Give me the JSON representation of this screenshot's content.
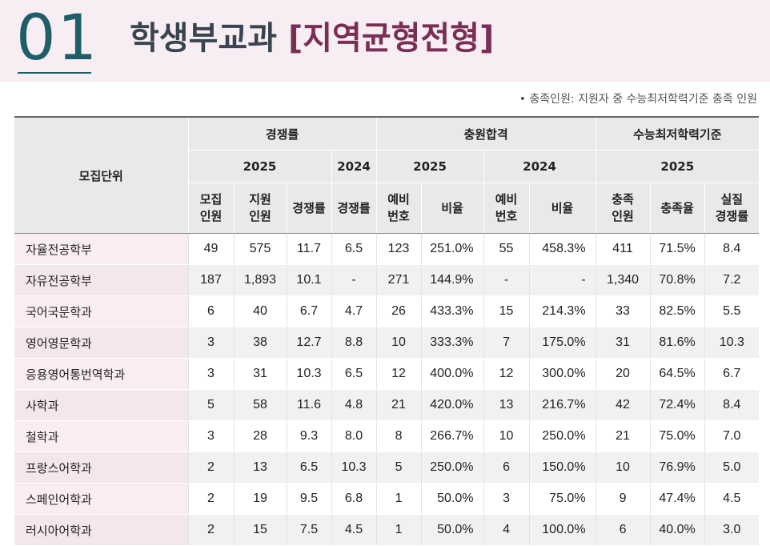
{
  "header": {
    "section_number": "01",
    "title_main": "학생부교과",
    "title_sub": "[지역균형전형]"
  },
  "note": "• 충족인원: 지원자 중 수능최저학력기준 충족 인원",
  "table": {
    "unit_header": "모집단위",
    "group_competition": "경쟁률",
    "group_additional": "충원합격",
    "group_csat": "수능최저학력기준",
    "years": {
      "y2025": "2025",
      "y2024": "2024"
    },
    "cols": {
      "recruit": "모집\n인원",
      "applicants": "지원\n인원",
      "rate": "경쟁률",
      "rate_2024": "경쟁률",
      "waitlist": "예비\n번호",
      "ratio": "비율",
      "waitlist_2024": "예비\n번호",
      "ratio_2024": "비율",
      "met": "충족\n인원",
      "met_rate": "충족율",
      "actual_rate": "실질\n경쟁률"
    },
    "rows": [
      [
        "자율전공학부",
        "49",
        "575",
        "11.7",
        "6.5",
        "123",
        "251.0%",
        "55",
        "458.3%",
        "411",
        "71.5%",
        "8.4"
      ],
      [
        "자유전공학부",
        "187",
        "1,893",
        "10.1",
        "-",
        "271",
        "144.9%",
        "-",
        "-",
        "1,340",
        "70.8%",
        "7.2"
      ],
      [
        "국어국문학과",
        "6",
        "40",
        "6.7",
        "4.7",
        "26",
        "433.3%",
        "15",
        "214.3%",
        "33",
        "82.5%",
        "5.5"
      ],
      [
        "영어영문학과",
        "3",
        "38",
        "12.7",
        "8.8",
        "10",
        "333.3%",
        "7",
        "175.0%",
        "31",
        "81.6%",
        "10.3"
      ],
      [
        "응용영어통번역학과",
        "3",
        "31",
        "10.3",
        "6.5",
        "12",
        "400.0%",
        "12",
        "300.0%",
        "20",
        "64.5%",
        "6.7"
      ],
      [
        "사학과",
        "5",
        "58",
        "11.6",
        "4.8",
        "21",
        "420.0%",
        "13",
        "216.7%",
        "42",
        "72.4%",
        "8.4"
      ],
      [
        "철학과",
        "3",
        "28",
        "9.3",
        "8.0",
        "8",
        "266.7%",
        "10",
        "250.0%",
        "21",
        "75.0%",
        "7.0"
      ],
      [
        "프랑스어학과",
        "2",
        "13",
        "6.5",
        "10.3",
        "5",
        "250.0%",
        "6",
        "150.0%",
        "10",
        "76.9%",
        "5.0"
      ],
      [
        "스페인어학과",
        "2",
        "19",
        "9.5",
        "6.8",
        "1",
        "50.0%",
        "3",
        "75.0%",
        "9",
        "47.4%",
        "4.5"
      ],
      [
        "러시아어학과",
        "2",
        "15",
        "7.5",
        "4.5",
        "1",
        "50.0%",
        "4",
        "100.0%",
        "6",
        "40.0%",
        "3.0"
      ]
    ]
  }
}
